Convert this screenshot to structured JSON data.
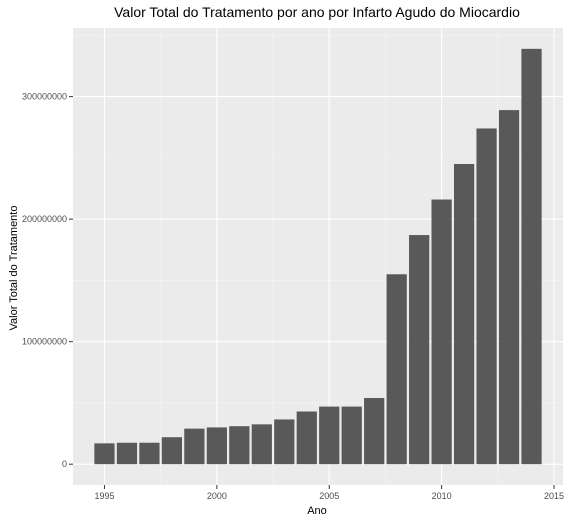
{
  "chart_data": {
    "type": "bar",
    "title": "Valor Total do Tratamento por ano por Infarto Agudo do Miocardio",
    "xlabel": "Ano",
    "ylabel": "Valor Total do Tratamento",
    "x": [
      1995,
      1996,
      1997,
      1998,
      1999,
      2000,
      2001,
      2002,
      2003,
      2004,
      2005,
      2006,
      2007,
      2008,
      2009,
      2010,
      2011,
      2012,
      2013,
      2014
    ],
    "values": [
      17000000,
      17500000,
      17500000,
      22000000,
      29000000,
      30000000,
      31000000,
      32500000,
      36500000,
      43000000,
      47000000,
      47000000,
      54000000,
      155000000,
      187000000,
      216000000,
      245000000,
      274000000,
      289000000,
      339000000
    ],
    "xticks": [
      1995,
      2000,
      2005,
      2010,
      2015
    ],
    "xtick_labels": [
      "1995",
      "2000",
      "2005",
      "2010",
      "2015"
    ],
    "yticks": [
      0,
      100000000,
      200000000,
      300000000
    ],
    "ytick_labels": [
      "0",
      "100000000",
      "200000000",
      "300000000"
    ],
    "xlim": [
      1993.6,
      2015.4
    ],
    "ylim": [
      -17000000,
      356000000
    ],
    "grid": true,
    "legend": "none",
    "colors": {
      "bar": "#595959",
      "panel": "#ebebeb",
      "grid_major": "#ffffff",
      "grid_minor": "#f5f5f5",
      "tick_text": "#4d4d4d",
      "tick_line": "#333333"
    }
  }
}
